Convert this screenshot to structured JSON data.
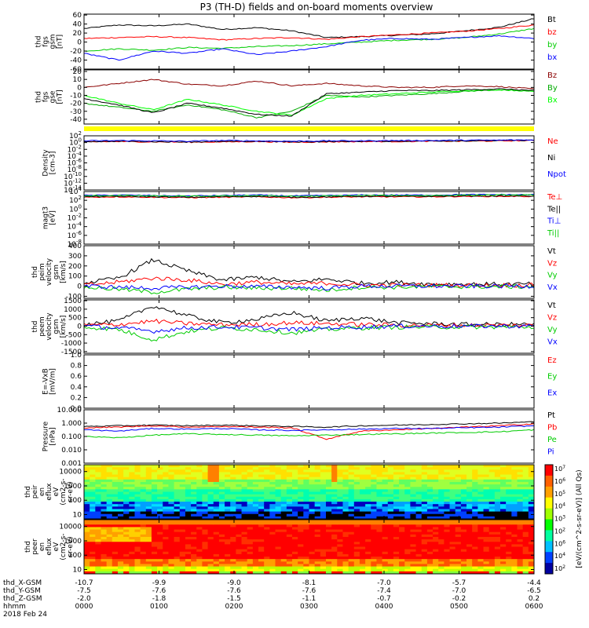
{
  "title": "P3 (TH-D) fields and on-board moments overview",
  "chart_data": [
    {
      "type": "line",
      "ylabel": [
        "thd",
        "fgs",
        "gsm",
        "[nT]"
      ],
      "yticks": [
        60,
        40,
        20,
        0,
        -20,
        -40,
        -60
      ],
      "ylim": [
        -60,
        62
      ],
      "series": [
        {
          "name": "Bt",
          "color": "#000000",
          "values": [
            30,
            38,
            36,
            40,
            28,
            32,
            25,
            10,
            12,
            15,
            18,
            25,
            33,
            52
          ]
        },
        {
          "name": "bz",
          "color": "#ff0000",
          "values": [
            8,
            10,
            12,
            10,
            5,
            8,
            10,
            6,
            12,
            16,
            20,
            24,
            30,
            38
          ]
        },
        {
          "name": "by",
          "color": "#00cc00",
          "values": [
            -20,
            -15,
            -18,
            -12,
            -14,
            -10,
            -8,
            -4,
            0,
            4,
            6,
            10,
            18,
            30
          ]
        },
        {
          "name": "bx",
          "color": "#0000ff",
          "values": [
            -25,
            -40,
            -20,
            -25,
            -15,
            -28,
            -20,
            -10,
            4,
            8,
            6,
            10,
            14,
            8
          ]
        }
      ]
    },
    {
      "type": "line",
      "ylabel": [
        "thd",
        "fgs",
        "gse",
        "[nT]"
      ],
      "yticks": [
        20,
        10,
        0,
        -10,
        -20,
        -30,
        -40
      ],
      "ylim": [
        -46,
        22
      ],
      "series": [
        {
          "name": "Bz",
          "color": "#8b0000",
          "values": [
            0,
            5,
            10,
            4,
            2,
            8,
            2,
            5,
            2,
            0,
            0,
            2,
            1,
            -2
          ]
        },
        {
          "name": "By",
          "color": "#00aa00",
          "values": [
            -20,
            -25,
            -30,
            -22,
            -28,
            -38,
            -30,
            -10,
            -12,
            -10,
            -8,
            -5,
            -3,
            -5
          ]
        },
        {
          "name": "Bx",
          "color": "#00ff00",
          "values": [
            -10,
            -20,
            -28,
            -15,
            -22,
            -30,
            -35,
            -14,
            -10,
            -8,
            -6,
            -4,
            -3,
            -5
          ]
        },
        {
          "name": "",
          "color": "#000000",
          "values": [
            -14,
            -22,
            -32,
            -20,
            -26,
            -34,
            -36,
            -8,
            -6,
            -4,
            -4,
            -3,
            -2,
            -4
          ]
        }
      ]
    },
    {
      "type": "line",
      "ylabel": [
        "Density",
        "[cm-3]"
      ],
      "yticks": [
        "10^2",
        "10^0",
        "10^-2",
        "10^-4",
        "10^-6",
        "10^-8",
        "10^-10",
        "10^-12",
        "10^-14"
      ],
      "log": true,
      "ylim": [
        -14,
        2
      ],
      "series": [
        {
          "name": "Ne",
          "color": "#ff0000",
          "values": [
            0.2,
            0.3,
            0.2,
            0.1,
            0.2,
            0.3,
            0.1,
            0.2,
            0.3,
            0.3,
            0.4,
            0.4,
            0.5,
            0.6
          ]
        },
        {
          "name": "Ni",
          "color": "#000000",
          "values": [
            0.3,
            0.4,
            0.3,
            0.2,
            0.3,
            0.4,
            0.2,
            0.3,
            0.4,
            0.4,
            0.5,
            0.5,
            0.6,
            0.7
          ]
        },
        {
          "name": "Npot",
          "color": "#0000ff",
          "values": [
            0.5,
            0.6,
            0.5,
            0.4,
            0.6,
            0.5,
            0.4,
            0.5,
            0.5,
            0.6,
            0.6,
            0.7,
            0.7,
            0.8
          ]
        }
      ]
    },
    {
      "type": "line",
      "ylabel": [
        "magt3",
        "[eV]"
      ],
      "yticks": [
        "10^4",
        "10^2",
        "10^0",
        "10^-2",
        "10^-4",
        "10^-6",
        "10^-8"
      ],
      "log": true,
      "ylim": [
        -8,
        4
      ],
      "series": [
        {
          "name": "Te⊥",
          "color": "#ff0000",
          "values": [
            2.7,
            2.8,
            2.7,
            2.6,
            2.7,
            2.8,
            2.6,
            2.7,
            2.8,
            2.8,
            2.8,
            2.9,
            2.9,
            2.9
          ]
        },
        {
          "name": "Te||",
          "color": "#000000",
          "values": [
            2.8,
            2.9,
            2.8,
            2.7,
            2.8,
            2.9,
            2.7,
            2.8,
            2.9,
            2.9,
            2.9,
            3.0,
            3.0,
            3.0
          ]
        },
        {
          "name": "Ti⊥",
          "color": "#0000ff",
          "values": [
            3.1,
            3.2,
            3.1,
            3.0,
            3.1,
            3.2,
            3.0,
            3.1,
            3.2,
            3.2,
            3.2,
            3.3,
            3.3,
            3.3
          ]
        },
        {
          "name": "Ti||",
          "color": "#00cc00",
          "values": [
            3.0,
            3.1,
            3.0,
            2.9,
            3.0,
            3.1,
            2.9,
            3.0,
            3.1,
            3.1,
            3.1,
            3.2,
            3.2,
            3.2
          ]
        }
      ]
    },
    {
      "type": "line",
      "ylabel": [
        "thd",
        "peim",
        "velocity",
        "gsm",
        "[km/s]"
      ],
      "yticks": [
        400,
        300,
        200,
        100,
        0,
        -100
      ],
      "ylim": [
        -120,
        400
      ],
      "series": [
        {
          "name": "Vt",
          "color": "#000000",
          "values": [
            30,
            80,
            260,
            150,
            60,
            90,
            40,
            70,
            30,
            40,
            20,
            20,
            20,
            20
          ]
        },
        {
          "name": "Vz",
          "color": "#ff0000",
          "values": [
            10,
            40,
            80,
            60,
            20,
            40,
            20,
            30,
            10,
            10,
            10,
            10,
            10,
            10
          ]
        },
        {
          "name": "Vy",
          "color": "#00cc00",
          "values": [
            -10,
            -30,
            -60,
            -30,
            -10,
            -20,
            -20,
            -40,
            -10,
            -10,
            -5,
            -5,
            -5,
            -5
          ]
        },
        {
          "name": "Vx",
          "color": "#0000ff",
          "values": [
            0,
            -10,
            -20,
            -10,
            0,
            -5,
            -10,
            -20,
            0,
            0,
            0,
            0,
            0,
            0
          ]
        }
      ]
    },
    {
      "type": "line",
      "ylabel": [
        "thd",
        "peem",
        "velocity",
        "gsm",
        "[km/s]"
      ],
      "yticks": [
        1500,
        1000,
        500,
        0,
        -500,
        -1000,
        -1500
      ],
      "ylim": [
        -1600,
        1550
      ],
      "series": [
        {
          "name": "Vt",
          "color": "#000000",
          "values": [
            100,
            300,
            1200,
            600,
            200,
            400,
            800,
            300,
            500,
            200,
            150,
            100,
            100,
            100
          ]
        },
        {
          "name": "Vz",
          "color": "#ff0000",
          "values": [
            50,
            100,
            300,
            150,
            80,
            100,
            200,
            150,
            100,
            60,
            50,
            50,
            50,
            50
          ]
        },
        {
          "name": "Vy",
          "color": "#00cc00",
          "values": [
            -50,
            -200,
            -800,
            -300,
            -100,
            -200,
            -400,
            -200,
            -100,
            -60,
            -50,
            -50,
            -50,
            -50
          ]
        },
        {
          "name": "Vx",
          "color": "#0000ff",
          "values": [
            0,
            -100,
            -300,
            -100,
            -50,
            -100,
            -200,
            -100,
            -50,
            0,
            0,
            0,
            0,
            0
          ]
        }
      ]
    },
    {
      "type": "line",
      "ylabel": [
        "E=-VxB",
        "[mV/m]"
      ],
      "yticks": [
        "1.0",
        "0.8",
        "0.6",
        "0.4",
        "0.2",
        "0.0"
      ],
      "ylim": [
        0,
        1
      ],
      "series": [
        {
          "name": "Ez",
          "color": "#ff0000",
          "values": []
        },
        {
          "name": "Ey",
          "color": "#00cc00",
          "values": []
        },
        {
          "name": "Ex",
          "color": "#0000ff",
          "values": []
        }
      ]
    },
    {
      "type": "line",
      "ylabel": [
        "Pressure",
        "[nPa]"
      ],
      "yticks": [
        "10.000",
        "1.000",
        "0.100",
        "0.010",
        "0.001"
      ],
      "log": true,
      "ylim": [
        -3,
        1
      ],
      "series": [
        {
          "name": "Pt",
          "color": "#000000",
          "values": [
            -0.25,
            -0.2,
            -0.15,
            -0.2,
            -0.15,
            -0.2,
            -0.25,
            -0.3,
            -0.2,
            -0.15,
            -0.1,
            -0.05,
            0.0,
            0.1
          ]
        },
        {
          "name": "Pb",
          "color": "#ff0000",
          "values": [
            -0.35,
            -0.3,
            -0.2,
            -0.3,
            -0.25,
            -0.3,
            -0.35,
            -1.2,
            -0.6,
            -0.5,
            -0.4,
            -0.3,
            -0.2,
            -0.05
          ]
        },
        {
          "name": "Pe",
          "color": "#00cc00",
          "values": [
            -1.0,
            -1.1,
            -0.9,
            -0.8,
            -0.85,
            -0.9,
            -0.95,
            -0.9,
            -0.85,
            -0.8,
            -0.75,
            -0.7,
            -0.65,
            -0.5
          ]
        },
        {
          "name": "Pi",
          "color": "#0000ff",
          "values": [
            -0.5,
            -0.6,
            -0.4,
            -0.45,
            -0.4,
            -0.5,
            -0.55,
            -0.5,
            -0.45,
            -0.4,
            -0.4,
            -0.35,
            -0.3,
            -0.2
          ]
        }
      ]
    },
    {
      "type": "heatmap",
      "ylabel": [
        "thd",
        "peir",
        "en",
        "eflux",
        "eV",
        "(cm2-s-",
        "sr-eV)"
      ],
      "yticks": [
        10000,
        1000,
        100,
        10
      ],
      "log": true,
      "ylim": [
        5,
        30000
      ]
    },
    {
      "type": "heatmap",
      "ylabel": [
        "thd",
        "peer",
        "en",
        "eflux",
        "eV",
        "(cm2-s-",
        "sr-eV)"
      ],
      "yticks": [
        10000,
        1000,
        100,
        10
      ],
      "log": true,
      "ylim": [
        5,
        30000
      ]
    }
  ],
  "colorbar": {
    "label": "[eV/(cm^2-s-sr-eV)] (All Qs)",
    "ticks": [
      "10^7",
      "10^6",
      "10^5",
      "10^4",
      "10^3",
      "10^2",
      "10^6",
      "10^4",
      "10^2"
    ]
  },
  "x_axis": {
    "rows": [
      {
        "label": "thd_X-GSM",
        "values": [
          "-10.7",
          "-9.9",
          "-9.0",
          "-8.1",
          "-7.0",
          "-5.7",
          "-4.4"
        ]
      },
      {
        "label": "thd_Y-GSM",
        "values": [
          "-7.5",
          "-7.6",
          "-7.6",
          "-7.6",
          "-7.4",
          "-7.0",
          "-6.5"
        ]
      },
      {
        "label": "thd_Z-GSM",
        "values": [
          "-2.0",
          "-1.8",
          "-1.5",
          "-1.1",
          "-0.7",
          "-0.2",
          "0.2"
        ]
      },
      {
        "label": "hhmm",
        "values": [
          "0000",
          "0100",
          "0200",
          "0300",
          "0400",
          "0500",
          "0600"
        ]
      }
    ],
    "date": "2018 Feb 24"
  }
}
